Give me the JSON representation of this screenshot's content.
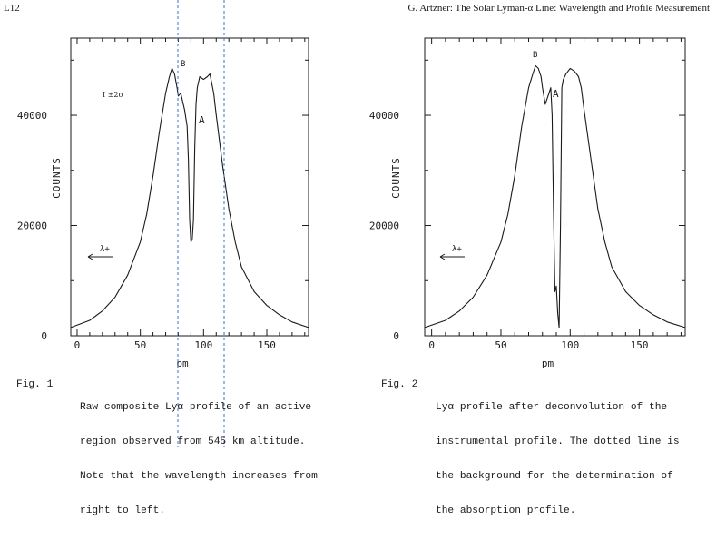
{
  "page": {
    "page_number": "L12",
    "running_header": "G. Artzner: The Solar Lyman-α Line: Wavelength and Profile Measurement"
  },
  "figures": [
    {
      "chart_data": {
        "type": "line",
        "xlabel": "pm",
        "ylabel": "COUNTS",
        "xlim": [
          -5,
          183
        ],
        "ylim": [
          0,
          54000
        ],
        "x_ticks": [
          "0",
          "50",
          "100",
          "150"
        ],
        "y_ticks": [
          "0",
          "20000",
          "40000"
        ],
        "annotations": {
          "error": "I ±2σ",
          "peak_label": "B",
          "dip_label": "A",
          "direction": "λ+"
        },
        "series": [
          {
            "x": [
              -5,
              10,
              20,
              30,
              40,
              50,
              55,
              60,
              65,
              70,
              73,
              75,
              77,
              79,
              80,
              82,
              85,
              87,
              88,
              89,
              90,
              91,
              92,
              93,
              94,
              95,
              97,
              100,
              103,
              105,
              108,
              110,
              115,
              120,
              125,
              130,
              140,
              150,
              160,
              170,
              183
            ],
            "y": [
              1500,
              2800,
              4500,
              7000,
              11000,
              17000,
              22000,
              29000,
              37000,
              44000,
              47000,
              48500,
              47500,
              45000,
              43500,
              44000,
              41000,
              38000,
              32000,
              21000,
              17000,
              17500,
              21000,
              34000,
              42000,
              45000,
              47000,
              46500,
              47000,
              47500,
              44000,
              40000,
              31000,
              23000,
              17000,
              12500,
              8000,
              5500,
              3800,
              2500,
              1500
            ]
          }
        ]
      },
      "caption": {
        "label": "Fig. 1",
        "lines": [
          "Raw composite Lyα profile of an active",
          "region observed from 545 km altitude.",
          "Note that the wavelength increases from",
          "right to left."
        ]
      }
    },
    {
      "chart_data": {
        "type": "line",
        "xlabel": "pm",
        "ylabel": "COUNTS",
        "xlim": [
          -5,
          183
        ],
        "ylim": [
          0,
          54000
        ],
        "x_ticks": [
          "0",
          "50",
          "100",
          "150"
        ],
        "y_ticks": [
          "0",
          "20000",
          "40000"
        ],
        "annotations": {
          "peak_label": "B",
          "dip_label": "A",
          "direction": "λ+"
        },
        "series": [
          {
            "x": [
              -5,
              10,
              20,
              30,
              40,
              50,
              55,
              60,
              65,
              70,
              73,
              75,
              77,
              79,
              80,
              82,
              84,
              86,
              87,
              88,
              89,
              90,
              91,
              92,
              93,
              94,
              95,
              97,
              100,
              103,
              106,
              108,
              110,
              115,
              120,
              125,
              130,
              140,
              150,
              160,
              170,
              183
            ],
            "y": [
              1500,
              2800,
              4500,
              7000,
              11000,
              17000,
              22000,
              29000,
              38000,
              45000,
              47500,
              49000,
              48500,
              47000,
              45000,
              42000,
              43500,
              45000,
              40000,
              22000,
              8000,
              9000,
              4000,
              1500,
              20000,
              45000,
              46500,
              47500,
              48500,
              48000,
              47000,
              45000,
              41000,
              32000,
              23000,
              17000,
              12500,
              8000,
              5500,
              3800,
              2500,
              1500
            ]
          }
        ]
      },
      "caption": {
        "label": "Fig. 2",
        "lines": [
          "Lyα profile after deconvolution of the",
          "instrumental profile. The dotted line is",
          "the background for the determination of",
          "the absorption profile."
        ]
      }
    }
  ]
}
